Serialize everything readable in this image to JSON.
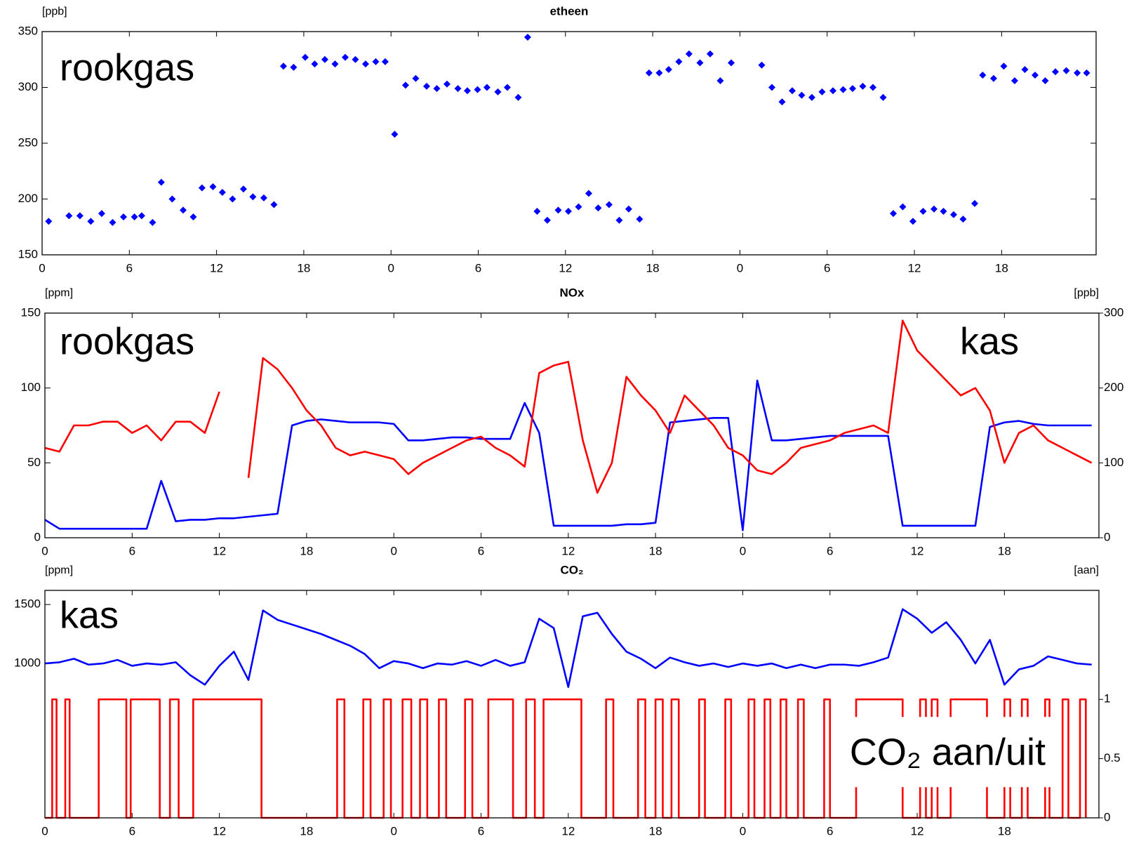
{
  "chart_data": [
    {
      "type": "scatter",
      "title": "etheen",
      "y_label": "[ppb]",
      "xlim": [
        0,
        72.5
      ],
      "xticks": [
        0,
        6,
        12,
        18,
        {
          "value": 24,
          "label": "0"
        },
        {
          "value": 30,
          "label": "6"
        },
        {
          "value": 36,
          "label": "12"
        },
        {
          "value": 42,
          "label": "18"
        },
        {
          "value": 48,
          "label": "0"
        },
        {
          "value": 54,
          "label": "6"
        },
        {
          "value": 60,
          "label": "12"
        },
        {
          "value": 66,
          "label": "18"
        }
      ],
      "ylim": [
        150,
        350
      ],
      "yticks": [
        150,
        200,
        250,
        300,
        350
      ],
      "series": [
        {
          "name": "rookgas",
          "color": "#0000ff",
          "x": [
            0.45,
            1.85,
            2.6,
            3.35,
            4.1,
            4.85,
            5.6,
            6.35,
            6.85,
            7.6,
            8.2,
            8.95,
            9.7,
            10.4,
            11,
            11.75,
            12.4,
            13.1,
            13.85,
            14.5,
            15.25,
            15.95,
            16.6,
            17.3,
            18.1,
            18.75,
            19.45,
            20.15,
            20.85,
            21.55,
            22.25,
            22.95,
            23.6,
            24.25,
            25,
            25.7,
            26.45,
            27.15,
            27.85,
            28.6,
            29.25,
            29.95,
            30.6,
            31.35,
            32,
            32.75,
            33.4,
            34.05,
            34.75,
            35.5,
            36.2,
            36.9,
            37.6,
            38.25,
            39,
            39.7,
            40.35,
            41.1,
            41.75,
            42.45,
            43.1,
            43.8,
            44.5,
            45.25,
            45.95,
            46.65,
            47.4,
            49.5,
            50.2,
            50.9,
            51.6,
            52.25,
            52.95,
            53.65,
            54.4,
            55.1,
            55.75,
            56.45,
            57.15,
            57.85,
            58.55,
            59.2,
            59.9,
            60.6,
            61.35,
            62,
            62.7,
            63.35,
            64.15,
            64.7,
            65.45,
            66.15,
            66.9,
            67.6,
            68.3,
            69,
            69.7,
            70.45,
            71.2,
            71.85
          ],
          "values": [
            180,
            185,
            185,
            180,
            187,
            179,
            184,
            184,
            185,
            179,
            215,
            200,
            190,
            184,
            210,
            211,
            206,
            200,
            209,
            202,
            201,
            195,
            319,
            318,
            327,
            321,
            325,
            321,
            327,
            325,
            321,
            323,
            323,
            258,
            302,
            308,
            301,
            299,
            303,
            299,
            297,
            298,
            300,
            296,
            300,
            291,
            345,
            189,
            181,
            190,
            189,
            193,
            205,
            192,
            195,
            181,
            191,
            182,
            313,
            313,
            316,
            323,
            330,
            322,
            330,
            306,
            322,
            320,
            300,
            287,
            297,
            293,
            291,
            296,
            297,
            298,
            299,
            301,
            300,
            291,
            187,
            193,
            180,
            189,
            191,
            189,
            186,
            182,
            196,
            311,
            308,
            319,
            306,
            316,
            311,
            306,
            314,
            315,
            313,
            313
          ]
        }
      ]
    },
    {
      "type": "line",
      "title": "NOx",
      "y_label": "[ppm]",
      "y2_label": "[ppb]",
      "xlim": [
        0,
        72.5
      ],
      "xticks": [
        0,
        6,
        12,
        18,
        {
          "value": 24,
          "label": "0"
        },
        {
          "value": 30,
          "label": "6"
        },
        {
          "value": 36,
          "label": "12"
        },
        {
          "value": 42,
          "label": "18"
        },
        {
          "value": 48,
          "label": "0"
        },
        {
          "value": 54,
          "label": "6"
        },
        {
          "value": 60,
          "label": "12"
        },
        {
          "value": 66,
          "label": "18"
        }
      ],
      "ylim": [
        0,
        150
      ],
      "yticks": [
        0,
        50,
        100,
        150
      ],
      "y2lim": [
        0,
        300
      ],
      "y2ticks": [
        0,
        100,
        200,
        300
      ],
      "x": [
        0,
        1,
        2,
        3,
        4,
        5,
        6,
        7,
        8,
        9,
        10,
        11,
        12,
        13,
        14,
        15,
        16,
        17,
        18,
        19,
        20,
        21,
        22,
        23,
        24,
        25,
        26,
        27,
        28,
        29,
        30,
        31,
        32,
        33,
        34,
        35,
        36,
        37,
        38,
        39,
        40,
        41,
        42,
        43,
        44,
        45,
        46,
        47,
        48,
        49,
        50,
        51,
        52,
        53,
        54,
        55,
        56,
        57,
        58,
        59,
        60,
        61,
        62,
        63,
        64,
        65,
        66,
        67,
        68,
        69,
        70,
        71,
        72
      ],
      "series": [
        {
          "name": "rookgas",
          "color": "#0000ff",
          "values": [
            12,
            6,
            6,
            6,
            6,
            6,
            6,
            6,
            38,
            11,
            12,
            12,
            13,
            13,
            14,
            15,
            16,
            75,
            78,
            79,
            78,
            77,
            77,
            77,
            76,
            65,
            65,
            66,
            67,
            67,
            66,
            66,
            66,
            90,
            70,
            8,
            8,
            8,
            8,
            8,
            9,
            9,
            10,
            77,
            78,
            79,
            80,
            80,
            5,
            105,
            65,
            65,
            66,
            67,
            68,
            68,
            68,
            68,
            68,
            8,
            8,
            8,
            8,
            8,
            8,
            74,
            77,
            78,
            76,
            75,
            75,
            75,
            75
          ]
        },
        {
          "name": "kas",
          "color": "#ff0000",
          "axis": "y2",
          "values": [
            120,
            115,
            150,
            150,
            155,
            155,
            140,
            150,
            130,
            155,
            155,
            140,
            195,
            null,
            80,
            240,
            225,
            200,
            170,
            150,
            120,
            110,
            115,
            110,
            105,
            85,
            100,
            110,
            120,
            130,
            135,
            120,
            110,
            95,
            220,
            230,
            235,
            130,
            60,
            100,
            215,
            190,
            170,
            140,
            190,
            170,
            150,
            120,
            110,
            90,
            85,
            100,
            120,
            125,
            130,
            140,
            145,
            150,
            140,
            290,
            250,
            230,
            210,
            190,
            200,
            170,
            100,
            140,
            150,
            130,
            120,
            110,
            100
          ]
        }
      ]
    },
    {
      "type": "line",
      "title": "CO₂",
      "y_label": "[ppm]",
      "y2_label": "[aan]",
      "xlim": [
        0,
        72.5
      ],
      "xticks": [
        0,
        6,
        12,
        18,
        {
          "value": 24,
          "label": "0"
        },
        {
          "value": 30,
          "label": "6"
        },
        {
          "value": 36,
          "label": "12"
        },
        {
          "value": 42,
          "label": "18"
        },
        {
          "value": 48,
          "label": "0"
        },
        {
          "value": 54,
          "label": "6"
        },
        {
          "value": 60,
          "label": "12"
        },
        {
          "value": 66,
          "label": "18"
        }
      ],
      "ylim": [
        -310,
        1620
      ],
      "yticks": [
        1000,
        1500
      ],
      "y2lim": [
        0,
        1.92
      ],
      "y2ticks": [
        0,
        0.5,
        1
      ],
      "x": [
        0,
        1,
        2,
        3,
        4,
        5,
        6,
        7,
        8,
        9,
        10,
        11,
        12,
        13,
        14,
        15,
        16,
        17,
        18,
        19,
        20,
        21,
        22,
        23,
        24,
        25,
        26,
        27,
        28,
        29,
        30,
        31,
        32,
        33,
        34,
        35,
        36,
        37,
        38,
        39,
        40,
        41,
        42,
        43,
        44,
        45,
        46,
        47,
        48,
        49,
        50,
        51,
        52,
        53,
        54,
        55,
        56,
        57,
        58,
        59,
        60,
        61,
        62,
        63,
        64,
        65,
        66,
        67,
        68,
        69,
        70,
        71,
        72
      ],
      "series": [
        {
          "name": "kas",
          "color": "#0000ff",
          "values": [
            1000,
            1010,
            1040,
            990,
            1000,
            1030,
            980,
            1000,
            990,
            1010,
            900,
            820,
            980,
            1100,
            860,
            1450,
            1370,
            1330,
            1290,
            1250,
            1200,
            1150,
            1080,
            960,
            1020,
            1000,
            960,
            1000,
            990,
            1020,
            980,
            1030,
            980,
            1010,
            1380,
            1300,
            800,
            1400,
            1430,
            1250,
            1100,
            1040,
            960,
            1050,
            1010,
            980,
            1000,
            970,
            1000,
            980,
            1000,
            960,
            990,
            960,
            990,
            990,
            980,
            1010,
            1050,
            1460,
            1380,
            1260,
            1350,
            1200,
            1000,
            1200,
            820,
            950,
            980,
            1060,
            1030,
            1000,
            990
          ]
        },
        {
          "name": "CO₂ aan/uit",
          "color": "#ff0000",
          "axis": "y2",
          "step": true,
          "x": [
            0,
            0.5,
            0.8,
            1.4,
            1.7,
            3.7,
            5.6,
            5.9,
            7.9,
            8.6,
            9.2,
            10.2,
            14.9,
            20.1,
            20.6,
            21.9,
            22.4,
            23.3,
            23.8,
            24.6,
            25.2,
            25.8,
            26.3,
            27.1,
            27.6,
            28.9,
            29.4,
            30.5,
            32.2,
            33.1,
            33.7,
            34.3,
            36.9,
            38.6,
            39.1,
            40.8,
            41.3,
            42.0,
            42.5,
            43.1,
            43.6,
            45.0,
            45.4,
            46.8,
            47.2,
            48.4,
            48.8,
            49.5,
            49.9,
            50.6,
            51.0,
            51.8,
            52.2,
            53.6,
            54.0,
            55.8,
            59.0,
            60.2,
            60.6,
            61.0,
            61.4,
            62.3,
            64.8,
            66.0,
            66.4,
            67.2,
            67.6,
            68.8,
            69.1,
            70.0,
            70.4,
            71.2,
            71.6
          ],
          "values": [
            0,
            1,
            0,
            1,
            0,
            1,
            0,
            1,
            0,
            1,
            0,
            1,
            0,
            1,
            0,
            1,
            0,
            1,
            0,
            1,
            0,
            1,
            0,
            1,
            0,
            1,
            0,
            1,
            0,
            1,
            0,
            1,
            0,
            1,
            0,
            1,
            0,
            1,
            0,
            1,
            0,
            1,
            0,
            1,
            0,
            1,
            0,
            1,
            0,
            1,
            0,
            1,
            0,
            1,
            0,
            1,
            0,
            1,
            0,
            1,
            0,
            1,
            0,
            1,
            0,
            1,
            0,
            1,
            0,
            1,
            0,
            1,
            0
          ]
        }
      ]
    }
  ]
}
